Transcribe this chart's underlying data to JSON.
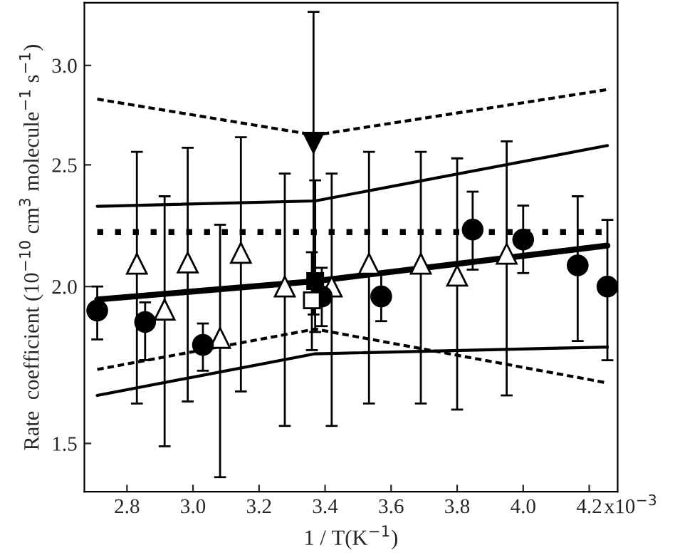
{
  "chart_data": {
    "type": "scatter",
    "xlabel": "1 / T(K$^{−1}$)",
    "ylabel": "Rate  coefficient (10$^{−10}$ cm$^{3}$ molecule$^{−1}$ s$^{−1}$)",
    "log": "y",
    "xlim": [
      2.671,
      4.286
    ],
    "xticks": [
      2.8,
      {
        "value": 3,
        "label": "3.0"
      },
      3.2,
      3.4,
      3.6,
      3.8,
      {
        "value": 4,
        "label": "4.0"
      },
      4.2
    ],
    "annotations": [
      "x10$^{−3}$"
    ],
    "ylim": [
      1.373,
      3.365
    ],
    "yticks": [
      1.5,
      {
        "value": 2,
        "label": "2.0"
      },
      2.5,
      {
        "value": 3,
        "label": "3.0"
      }
    ],
    "series": [
      {
        "type": "line",
        "color": "#000000",
        "line_style": "solid",
        "x": [
          2.71,
          3.37,
          4.255
        ],
        "values": [
          1.953,
          2.02,
          2.156
        ]
      },
      {
        "type": "line",
        "color": "#000000",
        "line_style": "dotted",
        "x": [
          2.71,
          4.255
        ],
        "values": [
          2.21,
          2.21
        ]
      },
      {
        "type": "line",
        "color": "#000000",
        "line_style": "solid",
        "x": [
          2.71,
          3.37,
          4.255
        ],
        "values": [
          2.317,
          2.34,
          2.59
        ]
      },
      {
        "type": "line",
        "color": "#000000",
        "line_style": "solid",
        "x": [
          2.71,
          3.37,
          4.255
        ],
        "values": [
          1.638,
          1.768,
          1.79
        ]
      },
      {
        "type": "line",
        "color": "#000000",
        "line_style": "dashed",
        "x": [
          2.71,
          3.37,
          4.255
        ],
        "values": [
          2.82,
          2.64,
          2.87
        ]
      },
      {
        "type": "line",
        "color": "#000000",
        "line_style": "dashed",
        "x": [
          2.71,
          3.37,
          4.255
        ],
        "values": [
          1.718,
          1.85,
          1.676
        ]
      },
      {
        "color": "#ffffff",
        "marker": "triangle",
        "x": [
          2.83,
          2.914,
          2.984,
          3.082,
          3.145,
          3.278,
          3.42,
          3.533,
          3.69,
          3.8,
          3.95
        ],
        "values": [
          2.085,
          1.917,
          2.09,
          1.82,
          2.127,
          2.0,
          2.0,
          2.085,
          2.085,
          2.04,
          2.124
        ],
        "errors": [
          [
            1.614,
            2.56
          ],
          [
            1.492,
            2.36
          ],
          [
            1.62,
            2.58
          ],
          [
            1.41,
            2.24
          ],
          [
            1.65,
            2.63
          ],
          [
            1.549,
            2.46
          ],
          [
            1.549,
            2.46
          ],
          [
            1.614,
            2.56
          ],
          [
            1.614,
            2.56
          ],
          [
            1.596,
            2.53
          ],
          [
            1.638,
            2.61
          ]
        ]
      },
      {
        "color": "#000000",
        "marker": "circle",
        "x": [
          2.71,
          2.855,
          3.03,
          3.39,
          3.57,
          3.847,
          4.0,
          4.165,
          4.255
        ],
        "values": [
          1.914,
          1.874,
          1.797,
          1.964,
          1.964,
          2.22,
          2.18,
          2.079,
          2.0
        ],
        "errors": [
          [
            1.815,
            2.0
          ],
          [
            1.748,
            1.943
          ],
          [
            1.714,
            1.869
          ],
          [
            1.86,
            2.07
          ],
          [
            1.877,
            2.05
          ],
          [
            2.063,
            2.38
          ],
          [
            2.05,
            2.32
          ],
          [
            1.81,
            2.36
          ],
          [
            1.747,
            2.26
          ]
        ]
      },
      {
        "color": "#000000",
        "marker": "triangle_down",
        "x": [
          3.365
        ],
        "values": [
          2.604
        ],
        "errors": [
          [
            1.9,
            3.31
          ]
        ]
      },
      {
        "color": "#000000",
        "marker": "square",
        "x": [
          3.37
        ],
        "values": [
          2.02
        ],
        "errors": [
          [
            1.84,
            2.43
          ]
        ]
      },
      {
        "color": "#ffffff",
        "marker": "square",
        "x": [
          3.36
        ],
        "values": [
          1.95
        ],
        "errors": [
          [
            1.78,
            2.13
          ]
        ]
      }
    ]
  }
}
